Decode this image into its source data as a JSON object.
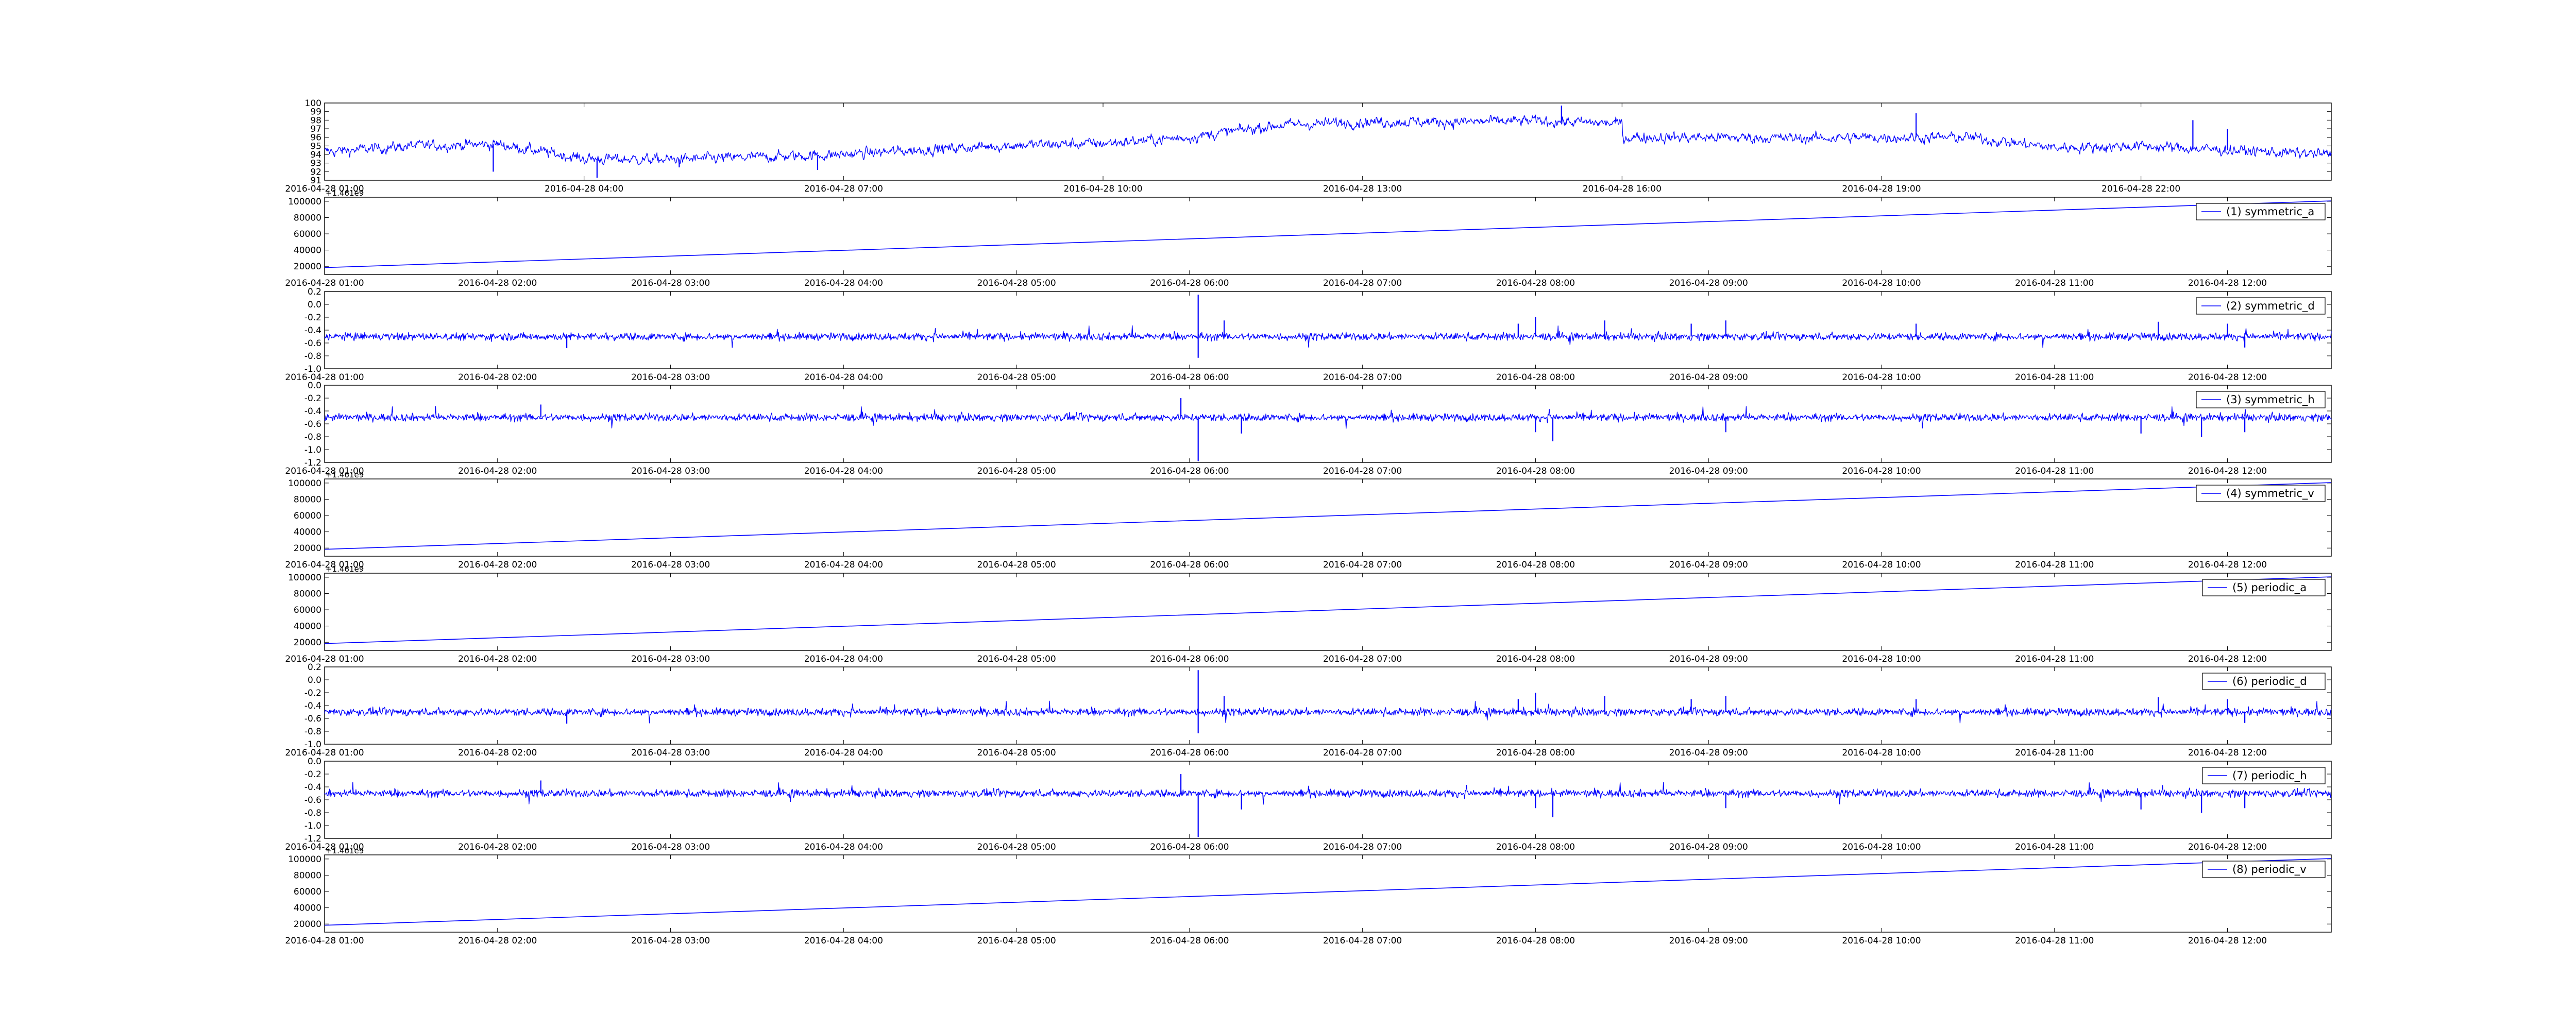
{
  "chart_data": [
    {
      "type": "line",
      "panel": 0,
      "color": "#0000ff",
      "ylim": [
        91,
        100
      ],
      "yticks": [
        91,
        92,
        93,
        94,
        95,
        96,
        97,
        98,
        99,
        100
      ],
      "xticks": [
        "2016-04-28 01:00",
        "2016-04-28 04:00",
        "2016-04-28 07:00",
        "2016-04-28 10:00",
        "2016-04-28 13:00",
        "2016-04-28 16:00",
        "2016-04-28 19:00",
        "2016-04-28 22:00"
      ],
      "x_range_hours": [
        1.0,
        24.2
      ],
      "series": [
        {
          "kind": "noisy",
          "noise": 0.9,
          "points": [
            [
              1.0,
              94.3
            ],
            [
              2.0,
              95.0
            ],
            [
              3.0,
              95.2
            ],
            [
              4.0,
              93.5
            ],
            [
              5.0,
              93.4
            ],
            [
              6.0,
              93.7
            ],
            [
              7.0,
              94.0
            ],
            [
              8.0,
              94.6
            ],
            [
              9.0,
              95.1
            ],
            [
              10.0,
              95.3
            ],
            [
              11.0,
              96.0
            ],
            [
              12.0,
              97.4
            ],
            [
              13.0,
              97.8
            ],
            [
              14.0,
              97.8
            ],
            [
              15.0,
              97.9
            ],
            [
              16.0,
              97.6
            ],
            [
              16.01,
              96.0
            ],
            [
              17.0,
              96.0
            ],
            [
              18.0,
              95.9
            ],
            [
              19.0,
              96.0
            ],
            [
              20.0,
              96.0
            ],
            [
              21.0,
              94.8
            ],
            [
              22.0,
              95.0
            ],
            [
              23.0,
              94.5
            ],
            [
              24.2,
              94.0
            ]
          ],
          "spikes": [
            [
              2.95,
              92.0
            ],
            [
              4.15,
              91.3
            ],
            [
              5.1,
              92.5
            ],
            [
              6.7,
              92.2
            ],
            [
              15.3,
              99.7
            ],
            [
              19.4,
              98.8
            ],
            [
              22.6,
              98.0
            ],
            [
              23.0,
              97.0
            ]
          ]
        }
      ]
    },
    {
      "type": "line",
      "panel": 1,
      "color": "#0000ff",
      "offset_label": "+1.461e9",
      "ylim": [
        10000,
        105000
      ],
      "yticks": [
        20000,
        40000,
        60000,
        80000,
        100000
      ],
      "xticks": [
        "2016-04-28 01:00",
        "2016-04-28 02:00",
        "2016-04-28 03:00",
        "2016-04-28 04:00",
        "2016-04-28 05:00",
        "2016-04-28 06:00",
        "2016-04-28 07:00",
        "2016-04-28 08:00",
        "2016-04-28 09:00",
        "2016-04-28 10:00",
        "2016-04-28 11:00",
        "2016-04-28 12:00"
      ],
      "x_range_hours": [
        1.0,
        12.6
      ],
      "legend": "(1) symmetric_a",
      "series": [
        {
          "name": "(1) symmetric_a",
          "kind": "linear",
          "points": [
            [
              1.0,
              18500
            ],
            [
              12.6,
              100500
            ]
          ]
        }
      ]
    },
    {
      "type": "line",
      "panel": 2,
      "color": "#0000ff",
      "ylim": [
        -1.0,
        0.2
      ],
      "yticks": [
        -1.0,
        -0.8,
        -0.6,
        -0.4,
        -0.2,
        0.0,
        0.2
      ],
      "xticks": [
        "2016-04-28 01:00",
        "2016-04-28 02:00",
        "2016-04-28 03:00",
        "2016-04-28 04:00",
        "2016-04-28 05:00",
        "2016-04-28 06:00",
        "2016-04-28 07:00",
        "2016-04-28 08:00",
        "2016-04-28 09:00",
        "2016-04-28 10:00",
        "2016-04-28 11:00",
        "2016-04-28 12:00"
      ],
      "x_range_hours": [
        1.0,
        12.6
      ],
      "legend": "(2) symmetric_d",
      "series": [
        {
          "name": "(2) symmetric_d",
          "kind": "noise",
          "base": -0.5,
          "noise": 0.06,
          "spikes": [
            [
              6.05,
              0.15
            ],
            [
              6.05,
              -0.83
            ],
            [
              6.2,
              -0.25
            ],
            [
              7.9,
              -0.3
            ],
            [
              8.0,
              -0.2
            ],
            [
              8.4,
              -0.25
            ],
            [
              8.9,
              -0.3
            ],
            [
              9.1,
              -0.25
            ],
            [
              10.2,
              -0.3
            ],
            [
              11.6,
              -0.27
            ],
            [
              12.0,
              -0.3
            ],
            [
              12.1,
              -0.67
            ],
            [
              2.4,
              -0.68
            ]
          ]
        }
      ]
    },
    {
      "type": "line",
      "panel": 3,
      "color": "#0000ff",
      "ylim": [
        -1.2,
        0.0
      ],
      "yticks": [
        -1.2,
        -1.0,
        -0.8,
        -0.6,
        -0.4,
        -0.2,
        0.0
      ],
      "xticks": [
        "2016-04-28 01:00",
        "2016-04-28 02:00",
        "2016-04-28 03:00",
        "2016-04-28 04:00",
        "2016-04-28 05:00",
        "2016-04-28 06:00",
        "2016-04-28 07:00",
        "2016-04-28 08:00",
        "2016-04-28 09:00",
        "2016-04-28 10:00",
        "2016-04-28 11:00",
        "2016-04-28 12:00"
      ],
      "x_range_hours": [
        1.0,
        12.6
      ],
      "legend": "(3) symmetric_h",
      "series": [
        {
          "name": "(3) symmetric_h",
          "kind": "noise",
          "base": -0.5,
          "noise": 0.06,
          "spikes": [
            [
              6.05,
              -1.18
            ],
            [
              5.95,
              -0.2
            ],
            [
              6.3,
              -0.75
            ],
            [
              8.1,
              -0.87
            ],
            [
              8.0,
              -0.73
            ],
            [
              9.1,
              -0.73
            ],
            [
              11.5,
              -0.75
            ],
            [
              11.85,
              -0.8
            ],
            [
              12.1,
              -0.73
            ],
            [
              2.25,
              -0.3
            ]
          ]
        }
      ]
    },
    {
      "type": "line",
      "panel": 4,
      "color": "#0000ff",
      "offset_label": "+1.461e9",
      "ylim": [
        10000,
        105000
      ],
      "yticks": [
        20000,
        40000,
        60000,
        80000,
        100000
      ],
      "xticks": [
        "2016-04-28 01:00",
        "2016-04-28 02:00",
        "2016-04-28 03:00",
        "2016-04-28 04:00",
        "2016-04-28 05:00",
        "2016-04-28 06:00",
        "2016-04-28 07:00",
        "2016-04-28 08:00",
        "2016-04-28 09:00",
        "2016-04-28 10:00",
        "2016-04-28 11:00",
        "2016-04-28 12:00"
      ],
      "x_range_hours": [
        1.0,
        12.6
      ],
      "legend": "(4) symmetric_v",
      "series": [
        {
          "name": "(4) symmetric_v",
          "kind": "linear",
          "points": [
            [
              1.0,
              18500
            ],
            [
              12.6,
              100500
            ]
          ]
        }
      ]
    },
    {
      "type": "line",
      "panel": 5,
      "color": "#0000ff",
      "offset_label": "+1.461e9",
      "ylim": [
        10000,
        105000
      ],
      "yticks": [
        20000,
        40000,
        60000,
        80000,
        100000
      ],
      "xticks": [
        "2016-04-28 01:00",
        "2016-04-28 02:00",
        "2016-04-28 03:00",
        "2016-04-28 04:00",
        "2016-04-28 05:00",
        "2016-04-28 06:00",
        "2016-04-28 07:00",
        "2016-04-28 08:00",
        "2016-04-28 09:00",
        "2016-04-28 10:00",
        "2016-04-28 11:00",
        "2016-04-28 12:00"
      ],
      "x_range_hours": [
        1.0,
        12.6
      ],
      "legend": "(5) periodic_a",
      "series": [
        {
          "name": "(5) periodic_a",
          "kind": "linear",
          "points": [
            [
              1.0,
              18500
            ],
            [
              12.6,
              100500
            ]
          ]
        }
      ]
    },
    {
      "type": "line",
      "panel": 6,
      "color": "#0000ff",
      "ylim": [
        -1.0,
        0.2
      ],
      "yticks": [
        -1.0,
        -0.8,
        -0.6,
        -0.4,
        -0.2,
        0.0,
        0.2
      ],
      "xticks": [
        "2016-04-28 01:00",
        "2016-04-28 02:00",
        "2016-04-28 03:00",
        "2016-04-28 04:00",
        "2016-04-28 05:00",
        "2016-04-28 06:00",
        "2016-04-28 07:00",
        "2016-04-28 08:00",
        "2016-04-28 09:00",
        "2016-04-28 10:00",
        "2016-04-28 11:00",
        "2016-04-28 12:00"
      ],
      "x_range_hours": [
        1.0,
        12.6
      ],
      "legend": "(6) periodic_d",
      "series": [
        {
          "name": "(6) periodic_d",
          "kind": "noise",
          "base": -0.5,
          "noise": 0.06,
          "spikes": [
            [
              6.05,
              0.15
            ],
            [
              6.05,
              -0.83
            ],
            [
              6.2,
              -0.25
            ],
            [
              7.9,
              -0.3
            ],
            [
              8.0,
              -0.2
            ],
            [
              8.4,
              -0.25
            ],
            [
              8.9,
              -0.3
            ],
            [
              9.1,
              -0.25
            ],
            [
              10.2,
              -0.3
            ],
            [
              11.6,
              -0.27
            ],
            [
              12.0,
              -0.3
            ],
            [
              12.1,
              -0.67
            ],
            [
              2.4,
              -0.68
            ]
          ]
        }
      ]
    },
    {
      "type": "line",
      "panel": 7,
      "color": "#0000ff",
      "ylim": [
        -1.2,
        0.0
      ],
      "yticks": [
        -1.2,
        -1.0,
        -0.8,
        -0.6,
        -0.4,
        -0.2,
        0.0
      ],
      "xticks": [
        "2016-04-28 01:00",
        "2016-04-28 02:00",
        "2016-04-28 03:00",
        "2016-04-28 04:00",
        "2016-04-28 05:00",
        "2016-04-28 06:00",
        "2016-04-28 07:00",
        "2016-04-28 08:00",
        "2016-04-28 09:00",
        "2016-04-28 10:00",
        "2016-04-28 11:00",
        "2016-04-28 12:00"
      ],
      "x_range_hours": [
        1.0,
        12.6
      ],
      "legend": "(7) periodic_h",
      "series": [
        {
          "name": "(7) periodic_h",
          "kind": "noise",
          "base": -0.5,
          "noise": 0.06,
          "spikes": [
            [
              6.05,
              -1.18
            ],
            [
              5.95,
              -0.2
            ],
            [
              6.3,
              -0.75
            ],
            [
              8.1,
              -0.87
            ],
            [
              8.0,
              -0.73
            ],
            [
              9.1,
              -0.73
            ],
            [
              11.5,
              -0.75
            ],
            [
              11.85,
              -0.8
            ],
            [
              12.1,
              -0.73
            ],
            [
              2.25,
              -0.3
            ]
          ]
        }
      ]
    },
    {
      "type": "line",
      "panel": 8,
      "color": "#0000ff",
      "offset_label": "+1.461e9",
      "ylim": [
        10000,
        105000
      ],
      "yticks": [
        20000,
        40000,
        60000,
        80000,
        100000
      ],
      "xticks": [
        "2016-04-28 01:00",
        "2016-04-28 02:00",
        "2016-04-28 03:00",
        "2016-04-28 04:00",
        "2016-04-28 05:00",
        "2016-04-28 06:00",
        "2016-04-28 07:00",
        "2016-04-28 08:00",
        "2016-04-28 09:00",
        "2016-04-28 10:00",
        "2016-04-28 11:00",
        "2016-04-28 12:00"
      ],
      "x_range_hours": [
        1.0,
        12.6
      ],
      "legend": "(8) periodic_v",
      "series": [
        {
          "name": "(8) periodic_v",
          "kind": "linear",
          "points": [
            [
              1.0,
              18500
            ],
            [
              12.6,
              100500
            ]
          ]
        }
      ]
    }
  ]
}
